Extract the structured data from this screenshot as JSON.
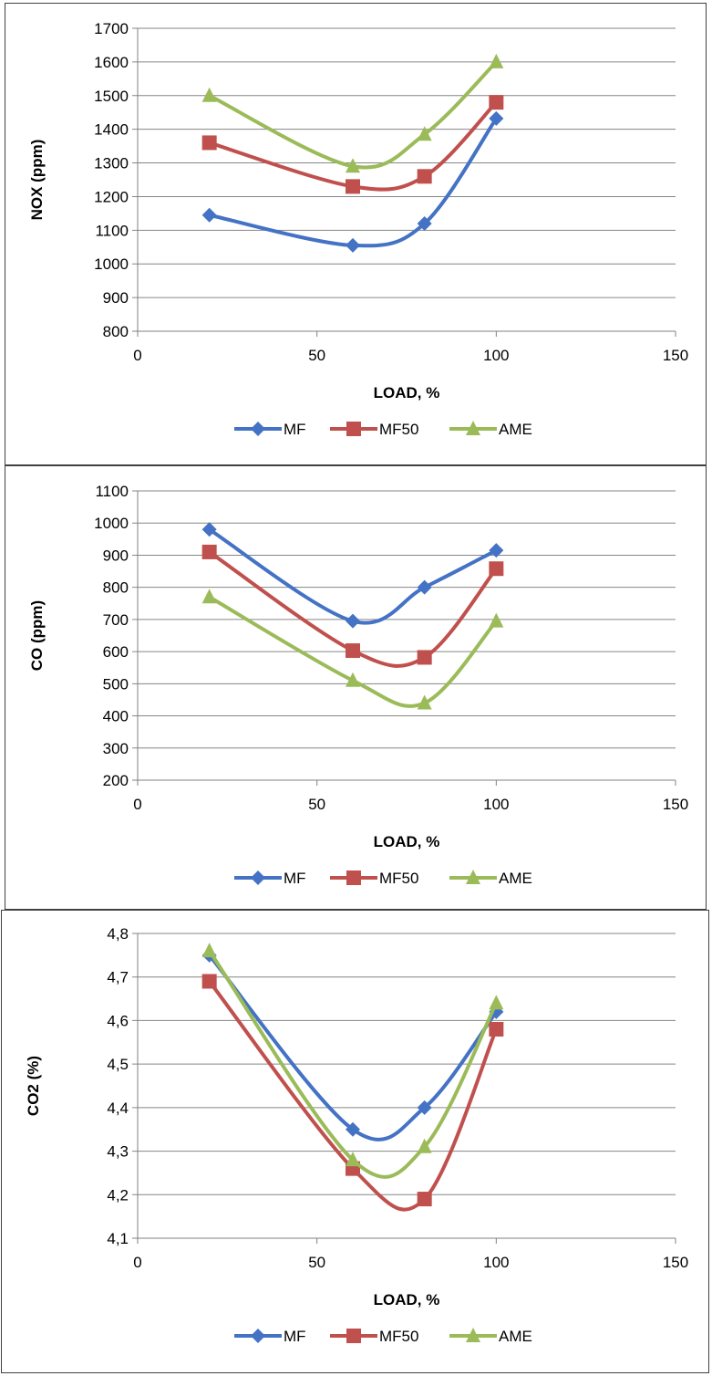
{
  "chart_data": [
    {
      "type": "line",
      "xlabel": "LOAD, %",
      "ylabel": "NOX (ppm)",
      "xlim": [
        0,
        150
      ],
      "ylim": [
        800,
        1700
      ],
      "x_ticks": [
        "0",
        "50",
        "100",
        "150"
      ],
      "y_ticks": [
        "800",
        "900",
        "1000",
        "1100",
        "1200",
        "1300",
        "1400",
        "1500",
        "1600",
        "1700"
      ],
      "grid": "horizontal",
      "legend": "bottom",
      "x": [
        20,
        60,
        80,
        100
      ],
      "series": [
        {
          "name": "MF",
          "color": "#4472C4",
          "marker": "diamond",
          "values": [
            1145,
            1055,
            1120,
            1432
          ]
        },
        {
          "name": "MF50",
          "color": "#C0504D",
          "marker": "square",
          "values": [
            1360,
            1230,
            1260,
            1480
          ]
        },
        {
          "name": "AME",
          "color": "#9BBB59",
          "marker": "triangle",
          "values": [
            1500,
            1290,
            1385,
            1600
          ]
        }
      ]
    },
    {
      "type": "line",
      "xlabel": "LOAD, %",
      "ylabel": "CO (ppm)",
      "xlim": [
        0,
        150
      ],
      "ylim": [
        200,
        1100
      ],
      "x_ticks": [
        "0",
        "50",
        "100",
        "150"
      ],
      "y_ticks": [
        "200",
        "300",
        "400",
        "500",
        "600",
        "700",
        "800",
        "900",
        "1000",
        "1100"
      ],
      "grid": "horizontal",
      "legend": "bottom",
      "x": [
        20,
        60,
        80,
        100
      ],
      "series": [
        {
          "name": "MF",
          "color": "#4472C4",
          "marker": "diamond",
          "values": [
            980,
            695,
            800,
            915
          ]
        },
        {
          "name": "MF50",
          "color": "#C0504D",
          "marker": "square",
          "values": [
            910,
            603,
            582,
            858
          ]
        },
        {
          "name": "AME",
          "color": "#9BBB59",
          "marker": "triangle",
          "values": [
            770,
            510,
            440,
            695
          ]
        }
      ]
    },
    {
      "type": "line",
      "xlabel": "LOAD, %",
      "ylabel": "CO2 (%)",
      "xlim": [
        0,
        150
      ],
      "ylim": [
        4.1,
        4.8
      ],
      "x_ticks": [
        "0",
        "50",
        "100",
        "150"
      ],
      "y_ticks": [
        "4,1",
        "4,2",
        "4,3",
        "4,4",
        "4,5",
        "4,6",
        "4,7",
        "4,8"
      ],
      "grid": "horizontal",
      "legend": "bottom",
      "x": [
        20,
        60,
        80,
        100
      ],
      "series": [
        {
          "name": "MF",
          "color": "#4472C4",
          "marker": "diamond",
          "values": [
            4.75,
            4.35,
            4.4,
            4.62
          ]
        },
        {
          "name": "MF50",
          "color": "#C0504D",
          "marker": "square",
          "values": [
            4.69,
            4.26,
            4.19,
            4.58
          ]
        },
        {
          "name": "AME",
          "color": "#9BBB59",
          "marker": "triangle",
          "values": [
            4.76,
            4.28,
            4.31,
            4.64
          ]
        }
      ]
    }
  ]
}
